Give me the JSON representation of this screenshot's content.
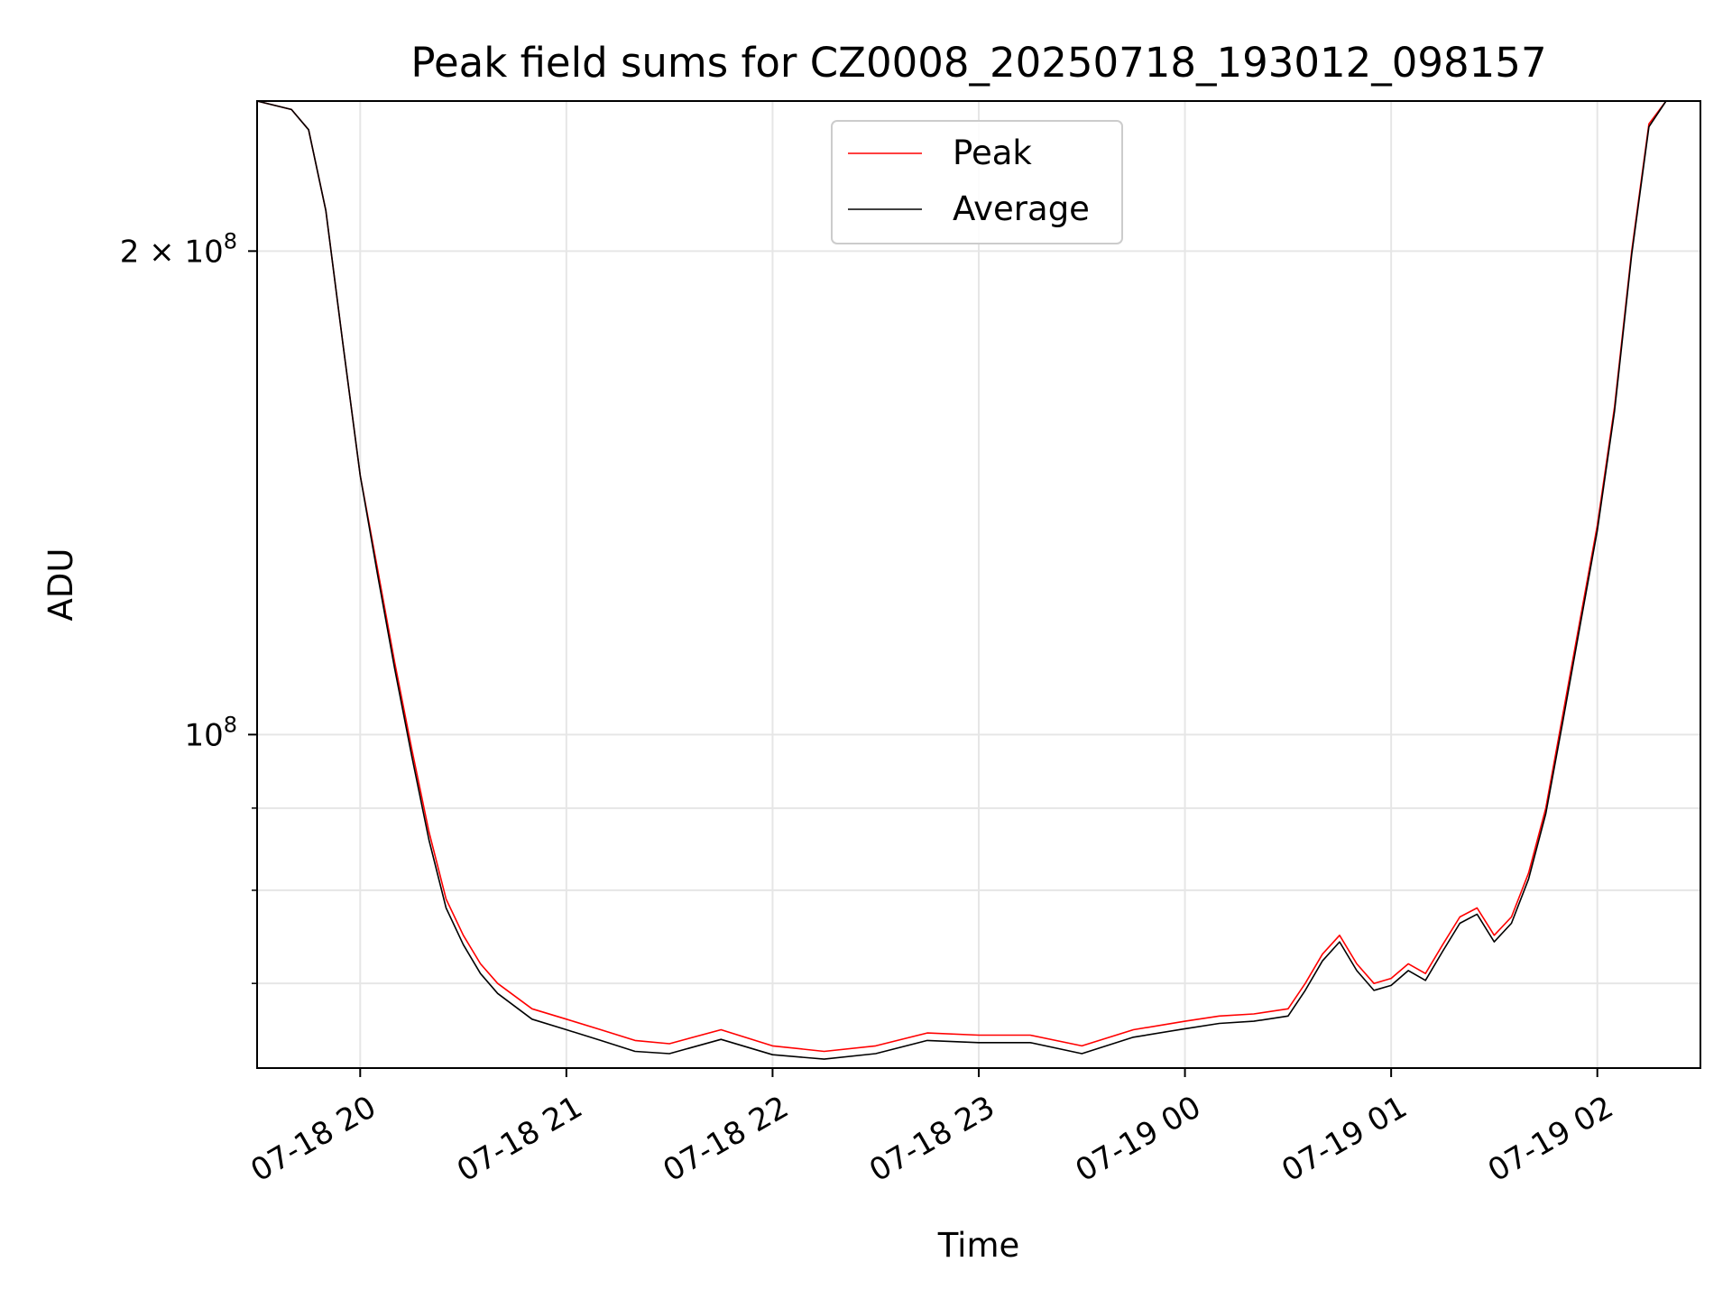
{
  "chart_data": {
    "type": "line",
    "title": "Peak field sums for CZ0008_20250718_193012_098157",
    "xlabel": "Time",
    "ylabel": "ADU",
    "yscale": "log",
    "ylim": [
      62000000,
      248000000
    ],
    "xlim": [
      "2025-07-18 19:30",
      "2025-07-19 02:30"
    ],
    "x_ticks": [
      {
        "t": "2025-07-18 20:00",
        "label": "07-18 20"
      },
      {
        "t": "2025-07-18 21:00",
        "label": "07-18 21"
      },
      {
        "t": "2025-07-18 22:00",
        "label": "07-18 22"
      },
      {
        "t": "2025-07-18 23:00",
        "label": "07-18 23"
      },
      {
        "t": "2025-07-19 00:00",
        "label": "07-19 00"
      },
      {
        "t": "2025-07-19 01:00",
        "label": "07-19 01"
      },
      {
        "t": "2025-07-19 02:00",
        "label": "07-19 02"
      }
    ],
    "y_major_ticks": [
      {
        "value": 100000000,
        "base": "10",
        "exp": "8"
      },
      {
        "value": 200000000,
        "base": "2 × 10",
        "exp": "8"
      }
    ],
    "y_minor_ticks": [
      70000000,
      80000000,
      90000000
    ],
    "grid": true,
    "legend": "upper center",
    "series": [
      {
        "name": "Peak",
        "color": "#ff0000",
        "x": [
          "2025-07-18 19:30",
          "2025-07-18 19:40",
          "2025-07-18 19:45",
          "2025-07-18 19:50",
          "2025-07-18 19:55",
          "2025-07-18 20:00",
          "2025-07-18 20:05",
          "2025-07-18 20:10",
          "2025-07-18 20:15",
          "2025-07-18 20:20",
          "2025-07-18 20:25",
          "2025-07-18 20:30",
          "2025-07-18 20:35",
          "2025-07-18 20:40",
          "2025-07-18 20:50",
          "2025-07-18 21:00",
          "2025-07-18 21:10",
          "2025-07-18 21:20",
          "2025-07-18 21:30",
          "2025-07-18 21:45",
          "2025-07-18 22:00",
          "2025-07-18 22:15",
          "2025-07-18 22:30",
          "2025-07-18 22:45",
          "2025-07-18 23:00",
          "2025-07-18 23:15",
          "2025-07-18 23:30",
          "2025-07-18 23:45",
          "2025-07-19 00:00",
          "2025-07-19 00:10",
          "2025-07-19 00:20",
          "2025-07-19 00:30",
          "2025-07-19 00:35",
          "2025-07-19 00:40",
          "2025-07-19 00:45",
          "2025-07-19 00:50",
          "2025-07-19 00:55",
          "2025-07-19 01:00",
          "2025-07-19 01:05",
          "2025-07-19 01:10",
          "2025-07-19 01:15",
          "2025-07-19 01:20",
          "2025-07-19 01:25",
          "2025-07-19 01:30",
          "2025-07-19 01:35",
          "2025-07-19 01:40",
          "2025-07-19 01:45",
          "2025-07-19 01:50",
          "2025-07-19 01:55",
          "2025-07-19 02:00",
          "2025-07-19 02:05",
          "2025-07-19 02:10",
          "2025-07-19 02:15",
          "2025-07-19 02:20",
          "2025-07-19 02:30"
        ],
        "y": [
          248000000,
          245000000,
          238000000,
          212000000,
          175000000,
          145000000,
          127000000,
          111000000,
          98000000,
          87000000,
          79000000,
          75000000,
          72000000,
          70000000,
          67500000,
          66500000,
          65500000,
          64500000,
          64200000,
          65500000,
          64000000,
          63500000,
          64000000,
          65200000,
          65000000,
          65000000,
          64000000,
          65500000,
          66300000,
          66800000,
          67000000,
          67500000,
          70000000,
          73000000,
          75000000,
          72000000,
          70000000,
          70500000,
          72000000,
          71000000,
          74000000,
          77000000,
          78000000,
          75000000,
          77000000,
          82000000,
          90000000,
          103000000,
          118000000,
          135000000,
          160000000,
          200000000,
          240000000,
          248000000,
          248000000
        ]
      },
      {
        "name": "Average",
        "color": "#000000",
        "x": [
          "2025-07-18 19:30",
          "2025-07-18 19:40",
          "2025-07-18 19:45",
          "2025-07-18 19:50",
          "2025-07-18 19:55",
          "2025-07-18 20:00",
          "2025-07-18 20:05",
          "2025-07-18 20:10",
          "2025-07-18 20:15",
          "2025-07-18 20:20",
          "2025-07-18 20:25",
          "2025-07-18 20:30",
          "2025-07-18 20:35",
          "2025-07-18 20:40",
          "2025-07-18 20:50",
          "2025-07-18 21:00",
          "2025-07-18 21:10",
          "2025-07-18 21:20",
          "2025-07-18 21:30",
          "2025-07-18 21:45",
          "2025-07-18 22:00",
          "2025-07-18 22:15",
          "2025-07-18 22:30",
          "2025-07-18 22:45",
          "2025-07-18 23:00",
          "2025-07-18 23:15",
          "2025-07-18 23:30",
          "2025-07-18 23:45",
          "2025-07-19 00:00",
          "2025-07-19 00:10",
          "2025-07-19 00:20",
          "2025-07-19 00:30",
          "2025-07-19 00:35",
          "2025-07-19 00:40",
          "2025-07-19 00:45",
          "2025-07-19 00:50",
          "2025-07-19 00:55",
          "2025-07-19 01:00",
          "2025-07-19 01:05",
          "2025-07-19 01:10",
          "2025-07-19 01:15",
          "2025-07-19 01:20",
          "2025-07-19 01:25",
          "2025-07-19 01:30",
          "2025-07-19 01:35",
          "2025-07-19 01:40",
          "2025-07-19 01:45",
          "2025-07-19 01:50",
          "2025-07-19 01:55",
          "2025-07-19 02:00",
          "2025-07-19 02:05",
          "2025-07-19 02:10",
          "2025-07-19 02:15",
          "2025-07-19 02:20",
          "2025-07-19 02:30"
        ],
        "y": [
          248000000,
          245000000,
          238000000,
          212000000,
          175000000,
          145000000,
          126000000,
          110000000,
          97000000,
          86000000,
          78000000,
          74000000,
          71000000,
          69000000,
          66500000,
          65500000,
          64500000,
          63500000,
          63300000,
          64600000,
          63200000,
          62800000,
          63300000,
          64500000,
          64300000,
          64300000,
          63300000,
          64800000,
          65600000,
          66100000,
          66300000,
          66800000,
          69300000,
          72300000,
          74300000,
          71300000,
          69300000,
          69800000,
          71300000,
          70300000,
          73300000,
          76300000,
          77300000,
          74300000,
          76300000,
          81300000,
          89300000,
          102000000,
          117000000,
          134000000,
          159000000,
          199000000,
          239000000,
          248000000,
          248000000
        ]
      }
    ]
  }
}
